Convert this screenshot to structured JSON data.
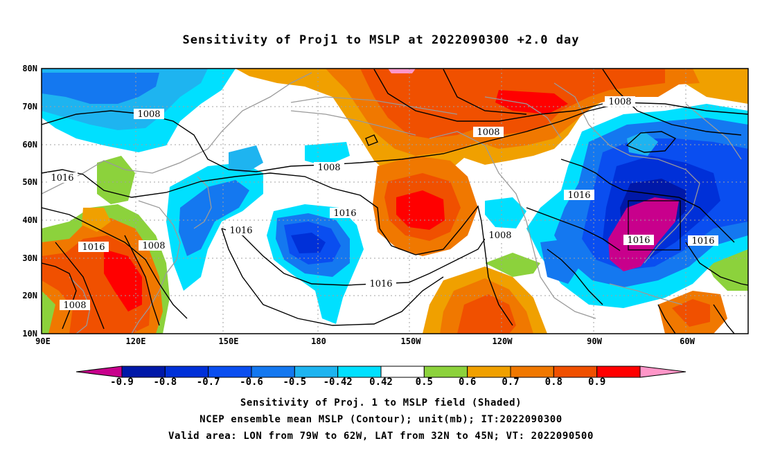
{
  "title": "Sensitivity of Proj1 to MSLP at 2022090300 +2.0 day",
  "axes": {
    "lat_labels": [
      "80N",
      "70N",
      "60N",
      "50N",
      "40N",
      "30N",
      "20N",
      "10N"
    ],
    "lon_labels": [
      "90E",
      "120E",
      "150E",
      "180",
      "150W",
      "120W",
      "90W",
      "60W"
    ]
  },
  "map_region": {
    "lon_range": [
      "90E",
      "50W"
    ],
    "lat_range": [
      "10N",
      "80N"
    ]
  },
  "contour_labels": [
    "1008",
    "1008",
    "1008",
    "1008",
    "1016",
    "1016",
    "1016",
    "1016",
    "1016",
    "1016",
    "1016",
    "1008",
    "1008",
    "1008"
  ],
  "colorbar": {
    "ticks": [
      "-0.9",
      "-0.8",
      "-0.7",
      "-0.6",
      "-0.5",
      "-0.42",
      "0.42",
      "0.5",
      "0.6",
      "0.7",
      "0.8",
      "0.9"
    ],
    "colors": [
      "#c8008c",
      "#0018a8",
      "#0030d8",
      "#0a4ef0",
      "#1478f0",
      "#1eb4f0",
      "#00e0ff",
      "#ffffff",
      "#8cd23c",
      "#f0a000",
      "#f07800",
      "#f05000",
      "#ff0000",
      "#ff96c8"
    ]
  },
  "captions": [
    "Sensitivity of Proj. 1 to MSLP field (Shaded)",
    "NCEP ensemble mean MSLP (Contour); unit(mb); IT:2022090300",
    "Valid area: LON from 79W to 62W, LAT from 32N to 45N; VT: 2022090500"
  ]
}
